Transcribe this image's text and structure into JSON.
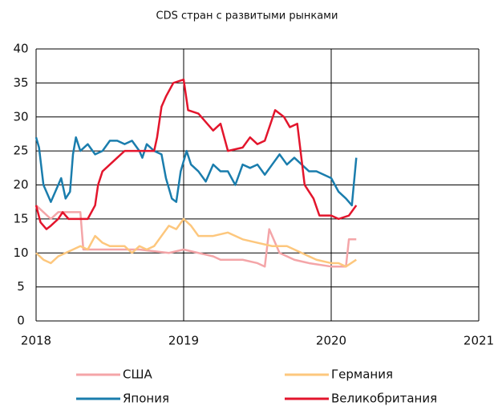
{
  "chart_data": {
    "type": "line",
    "title": "CDS стран с развитыми рынками",
    "xlim": [
      2018,
      2021
    ],
    "xticks": [
      2018,
      2019,
      2020,
      2021
    ],
    "ylim": [
      0,
      40
    ],
    "yticks": [
      0,
      5,
      10,
      15,
      20,
      25,
      30,
      35,
      40
    ],
    "grid": true,
    "legend": "bottom",
    "series": [
      {
        "name": "США",
        "color": "#f4a5a8",
        "x": [
          2018,
          2018.05,
          2018.1,
          2018.15,
          2018.3,
          2018.32,
          2018.5,
          2018.7,
          2018.9,
          2019.0,
          2019.1,
          2019.2,
          2019.25,
          2019.4,
          2019.5,
          2019.55,
          2019.58,
          2019.65,
          2019.75,
          2019.85,
          2020.0,
          2020.1,
          2020.12,
          2020.17
        ],
        "values": [
          17,
          16,
          15,
          16,
          16,
          10.5,
          10.5,
          10.5,
          10,
          10.5,
          10,
          9.5,
          9,
          9,
          8.5,
          8,
          13.5,
          10,
          9,
          8.5,
          8,
          8,
          12,
          12
        ]
      },
      {
        "name": "Германия",
        "color": "#fdc77d",
        "x": [
          2018,
          2018.05,
          2018.1,
          2018.15,
          2018.2,
          2018.25,
          2018.3,
          2018.35,
          2018.4,
          2018.45,
          2018.5,
          2018.6,
          2018.65,
          2018.7,
          2018.75,
          2018.8,
          2018.85,
          2018.9,
          2018.95,
          2019.0,
          2019.05,
          2019.1,
          2019.2,
          2019.3,
          2019.4,
          2019.5,
          2019.6,
          2019.7,
          2019.8,
          2019.9,
          2020.0,
          2020.05,
          2020.1,
          2020.17
        ],
        "values": [
          10,
          9,
          8.5,
          9.5,
          10,
          10.5,
          11,
          10.5,
          12.5,
          11.5,
          11,
          11,
          10,
          11,
          10.5,
          11,
          12.5,
          14,
          13.5,
          15,
          14,
          12.5,
          12.5,
          13,
          12,
          11.5,
          11,
          11,
          10,
          9,
          8.5,
          8.5,
          8,
          9
        ]
      },
      {
        "name": "Япония",
        "color": "#1a7dad",
        "x": [
          2018,
          2018.02,
          2018.05,
          2018.1,
          2018.13,
          2018.17,
          2018.2,
          2018.23,
          2018.25,
          2018.27,
          2018.3,
          2018.35,
          2018.4,
          2018.45,
          2018.5,
          2018.55,
          2018.6,
          2018.65,
          2018.7,
          2018.72,
          2018.75,
          2018.8,
          2018.85,
          2018.88,
          2018.92,
          2018.95,
          2018.98,
          2019.02,
          2019.05,
          2019.1,
          2019.15,
          2019.2,
          2019.25,
          2019.3,
          2019.35,
          2019.4,
          2019.45,
          2019.5,
          2019.55,
          2019.6,
          2019.65,
          2019.7,
          2019.75,
          2019.8,
          2019.85,
          2019.9,
          2019.95,
          2020.0,
          2020.05,
          2020.1,
          2020.14,
          2020.17
        ],
        "values": [
          27,
          25.5,
          20,
          17.5,
          19,
          21,
          18,
          19,
          24.5,
          27,
          25,
          26,
          24.5,
          25,
          26.5,
          26.5,
          26,
          26.5,
          25,
          24,
          26,
          25,
          24.5,
          21,
          18,
          17.5,
          22,
          25,
          23,
          22,
          20.5,
          23,
          22,
          22,
          20,
          23,
          22.5,
          23,
          21.5,
          23,
          24.5,
          23,
          24,
          23,
          22,
          22,
          21.5,
          21,
          19,
          18,
          17,
          24
        ]
      },
      {
        "name": "Великобритания",
        "color": "#e3152c",
        "x": [
          2018,
          2018.03,
          2018.07,
          2018.1,
          2018.15,
          2018.18,
          2018.22,
          2018.35,
          2018.4,
          2018.42,
          2018.45,
          2018.5,
          2018.55,
          2018.6,
          2018.7,
          2018.8,
          2018.82,
          2018.85,
          2018.88,
          2018.93,
          2019.0,
          2019.03,
          2019.1,
          2019.2,
          2019.25,
          2019.3,
          2019.4,
          2019.45,
          2019.5,
          2019.55,
          2019.62,
          2019.68,
          2019.72,
          2019.77,
          2019.82,
          2019.88,
          2019.92,
          2020.0,
          2020.05,
          2020.12,
          2020.17
        ],
        "values": [
          17,
          14.5,
          13.5,
          14,
          15,
          16,
          15,
          15,
          17,
          20,
          22,
          23,
          24,
          25,
          25,
          25,
          27,
          31.5,
          33,
          35,
          35.5,
          31,
          30.5,
          28,
          29,
          25,
          25.5,
          27,
          26,
          26.5,
          31,
          30,
          28.5,
          29,
          20,
          18,
          15.5,
          15.5,
          15,
          15.5,
          17
        ]
      }
    ]
  }
}
